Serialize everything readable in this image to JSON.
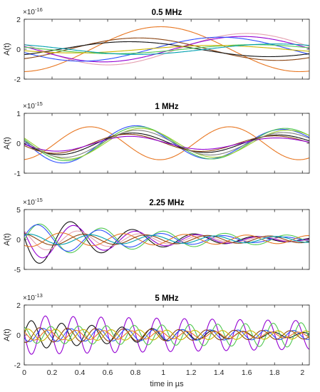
{
  "chart_data": [
    {
      "type": "line",
      "title": "0.5 MHz",
      "ylabel": "A(t)",
      "xlabel": "",
      "exponent_base": "×10",
      "exponent_power": "-16",
      "xlim": [
        0,
        2.05
      ],
      "ylim": [
        -2,
        2
      ],
      "yticks": [
        -2,
        0,
        2
      ],
      "xticks": [
        0,
        0.2,
        0.4,
        0.6,
        0.8,
        1,
        1.2,
        1.4,
        1.6,
        1.8,
        2
      ],
      "show_xtick_labels": false,
      "series": [
        {
          "color": "#e87722",
          "amp": 1.5,
          "freq": 0.5,
          "phase": 3.2,
          "decay": 0
        },
        {
          "color": "#e5a0b0",
          "amp": 1.05,
          "freq": 0.5,
          "phase": 1.25,
          "decay": 0
        },
        {
          "color": "#9400d3",
          "amp": 0.85,
          "freq": 0.5,
          "phase": 1.35,
          "decay": 0
        },
        {
          "color": "#2f4fff",
          "amp": 0.8,
          "freq": 0.5,
          "phase": 1.85,
          "decay": 0
        },
        {
          "color": "#8b4513",
          "amp": 0.75,
          "freq": 0.5,
          "phase": 3.7,
          "decay": 0
        },
        {
          "color": "#111111",
          "amp": 0.5,
          "freq": 0.5,
          "phase": 3.9,
          "decay": 0
        },
        {
          "color": "#4fc84f",
          "amp": 0.3,
          "freq": 0.5,
          "phase": 1.1,
          "decay": 0
        },
        {
          "color": "#cbb500",
          "amp": 0.25,
          "freq": 0.5,
          "phase": 2.0,
          "decay": 0
        },
        {
          "color": "#00a0b0",
          "amp": 0.35,
          "freq": 0.5,
          "phase": 0.6,
          "decay": 0
        }
      ]
    },
    {
      "type": "line",
      "title": "1 MHz",
      "ylabel": "A(t)",
      "xlabel": "",
      "exponent_base": "×10",
      "exponent_power": "-15",
      "xlim": [
        0,
        2.05
      ],
      "ylim": [
        -1,
        1
      ],
      "yticks": [
        -1,
        0,
        1
      ],
      "xticks": [
        0,
        0.2,
        0.4,
        0.6,
        0.8,
        1,
        1.2,
        1.4,
        1.6,
        1.8,
        2
      ],
      "show_xtick_labels": false,
      "series": [
        {
          "color": "#e87722",
          "amp": 0.55,
          "freq": 1.0,
          "phase": 3.3,
          "decay": 0
        },
        {
          "color": "#2f4fff",
          "amp": 0.7,
          "freq": 0.95,
          "phase": 1.45,
          "decay": 0.22
        },
        {
          "color": "#4fc84f",
          "amp": 0.6,
          "freq": 0.95,
          "phase": 1.35,
          "decay": 0.1
        },
        {
          "color": "#9acd32",
          "amp": 0.55,
          "freq": 0.95,
          "phase": 1.25,
          "decay": 0.12
        },
        {
          "color": "#111111",
          "amp": 0.4,
          "freq": 0.95,
          "phase": 1.6,
          "decay": 0.2
        },
        {
          "color": "#8b4513",
          "amp": 0.35,
          "freq": 0.95,
          "phase": 1.8,
          "decay": 0.2
        },
        {
          "color": "#9400d3",
          "amp": 0.28,
          "freq": 0.95,
          "phase": 1.7,
          "decay": 0.25
        },
        {
          "color": "#808080",
          "amp": 0.5,
          "freq": 0.95,
          "phase": 1.4,
          "decay": 0.18
        }
      ]
    },
    {
      "type": "line",
      "title": "2.25 MHz",
      "ylabel": "A(t)",
      "xlabel": "",
      "exponent_base": "×10",
      "exponent_power": "-15",
      "xlim": [
        0,
        2.05
      ],
      "ylim": [
        -5,
        5
      ],
      "yticks": [
        -5,
        0,
        5
      ],
      "xticks": [
        0,
        0.2,
        0.4,
        0.6,
        0.8,
        1,
        1.2,
        1.4,
        1.6,
        1.8,
        2
      ],
      "show_xtick_labels": false,
      "series": [
        {
          "color": "#111111",
          "amp": 4.6,
          "freq": 2.25,
          "phase": 1.5,
          "decay": 1.3
        },
        {
          "color": "#9400d3",
          "amp": 3.6,
          "freq": 2.25,
          "phase": 1.2,
          "decay": 1.2
        },
        {
          "color": "#4fc84f",
          "amp": 2.8,
          "freq": 2.25,
          "phase": -1.6,
          "decay": 0.7
        },
        {
          "color": "#2f4fff",
          "amp": 2.7,
          "freq": 2.25,
          "phase": -1.4,
          "decay": 1.0
        },
        {
          "color": "#e5a0b0",
          "amp": 2.0,
          "freq": 2.25,
          "phase": 0.8,
          "decay": 0.9
        },
        {
          "color": "#e87722",
          "amp": 1.2,
          "freq": 2.25,
          "phase": 2.5,
          "decay": 0.3
        },
        {
          "color": "#8b4513",
          "amp": 1.0,
          "freq": 2.25,
          "phase": 0.2,
          "decay": 0.3
        },
        {
          "color": "#00a0b0",
          "amp": 0.9,
          "freq": 2.25,
          "phase": -0.5,
          "decay": 0.3
        }
      ]
    },
    {
      "type": "line",
      "title": "5 MHz",
      "ylabel": "A(t)",
      "xlabel": "time in µs",
      "exponent_base": "×10",
      "exponent_power": "-13",
      "xlim": [
        0,
        2.05
      ],
      "ylim": [
        -2,
        2
      ],
      "yticks": [
        -2,
        0,
        2
      ],
      "xticks": [
        0,
        0.2,
        0.4,
        0.6,
        0.8,
        1,
        1.2,
        1.4,
        1.6,
        1.8,
        2
      ],
      "xtick_labels": [
        "0",
        "0.2",
        "0.4",
        "0.6",
        "0.8",
        "1",
        "1.2",
        "1.4",
        "1.6",
        "1.8",
        "2"
      ],
      "show_xtick_labels": true,
      "series": [
        {
          "color": "#9400d3",
          "amp": 1.3,
          "freq": 5.0,
          "phase": 1.5,
          "decay": 0.15
        },
        {
          "color": "#111111",
          "amp": 1.0,
          "freq": 4.6,
          "phase": -1.5,
          "decay": 0.9
        },
        {
          "color": "#4fc84f",
          "amp": 0.55,
          "freq": 5.0,
          "phase": 0.3,
          "decay": -0.2
        },
        {
          "color": "#2f4fff",
          "amp": 0.45,
          "freq": 5.0,
          "phase": 2.0,
          "decay": 0.2
        },
        {
          "color": "#8b4513",
          "amp": 0.5,
          "freq": 5.0,
          "phase": 2.8,
          "decay": 0.3
        },
        {
          "color": "#cbb500",
          "amp": 0.4,
          "freq": 5.0,
          "phase": -0.8,
          "decay": 0.2
        },
        {
          "color": "#e87722",
          "amp": 0.35,
          "freq": 5.0,
          "phase": 0.9,
          "decay": 0.3
        }
      ]
    }
  ]
}
